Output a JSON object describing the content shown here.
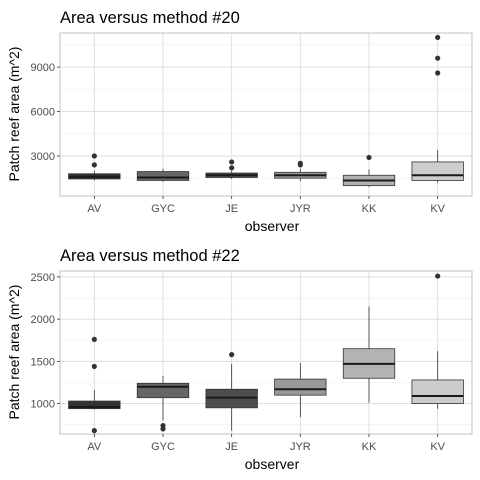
{
  "chart_data": [
    {
      "type": "boxplot",
      "title": "Area versus method #20",
      "xlabel": "observer",
      "ylabel": "Patch reef area (m^2)",
      "categories": [
        "AV",
        "GYC",
        "JE",
        "JYR",
        "KK",
        "KV"
      ],
      "ylim": [
        300,
        11300
      ],
      "yticks": [
        3000,
        6000,
        9000
      ],
      "grid": true,
      "fill_colors": [
        "#333333",
        "#666666",
        "#4d4d4d",
        "#999999",
        "#b3b3b3",
        "#cccccc"
      ],
      "boxes": [
        {
          "whisker_low": 1350,
          "q1": 1450,
          "median": 1600,
          "q3": 1800,
          "whisker_high": 2000,
          "outliers": [
            2400,
            3000
          ]
        },
        {
          "whisker_low": 1250,
          "q1": 1350,
          "median": 1550,
          "q3": 1950,
          "whisker_high": 2150,
          "outliers": []
        },
        {
          "whisker_low": 1450,
          "q1": 1550,
          "median": 1700,
          "q3": 1850,
          "whisker_high": 2000,
          "outliers": [
            2200,
            2600
          ]
        },
        {
          "whisker_low": 1300,
          "q1": 1500,
          "median": 1700,
          "q3": 1900,
          "whisker_high": 2150,
          "outliers": [
            2400,
            2500
          ]
        },
        {
          "whisker_low": 900,
          "q1": 1000,
          "median": 1350,
          "q3": 1700,
          "whisker_high": 2100,
          "outliers": [
            2900
          ]
        },
        {
          "whisker_low": 1200,
          "q1": 1350,
          "median": 1700,
          "q3": 2600,
          "whisker_high": 3400,
          "outliers": [
            8600,
            9600,
            11000
          ]
        }
      ]
    },
    {
      "type": "boxplot",
      "title": "Area versus method #22",
      "xlabel": "observer",
      "ylabel": "Patch reef area (m^2)",
      "categories": [
        "AV",
        "GYC",
        "JE",
        "JYR",
        "KK",
        "KV"
      ],
      "ylim": [
        640,
        2570
      ],
      "yticks": [
        1000,
        1500,
        2000,
        2500
      ],
      "grid": true,
      "fill_colors": [
        "#333333",
        "#666666",
        "#4d4d4d",
        "#999999",
        "#b3b3b3",
        "#cccccc"
      ],
      "boxes": [
        {
          "whisker_low": 930,
          "q1": 940,
          "median": 960,
          "q3": 1030,
          "whisker_high": 1160,
          "outliers": [
            680,
            1440,
            1760
          ]
        },
        {
          "whisker_low": 800,
          "q1": 1070,
          "median": 1200,
          "q3": 1240,
          "whisker_high": 1330,
          "outliers": [
            700,
            740
          ]
        },
        {
          "whisker_low": 680,
          "q1": 950,
          "median": 1070,
          "q3": 1170,
          "whisker_high": 1470,
          "outliers": [
            1580
          ]
        },
        {
          "whisker_low": 840,
          "q1": 1100,
          "median": 1170,
          "q3": 1290,
          "whisker_high": 1480,
          "outliers": []
        },
        {
          "whisker_low": 1010,
          "q1": 1300,
          "median": 1470,
          "q3": 1650,
          "whisker_high": 2150,
          "outliers": []
        },
        {
          "whisker_low": 940,
          "q1": 1000,
          "median": 1090,
          "q3": 1280,
          "whisker_high": 1620,
          "outliers": [
            2510
          ]
        }
      ]
    }
  ]
}
